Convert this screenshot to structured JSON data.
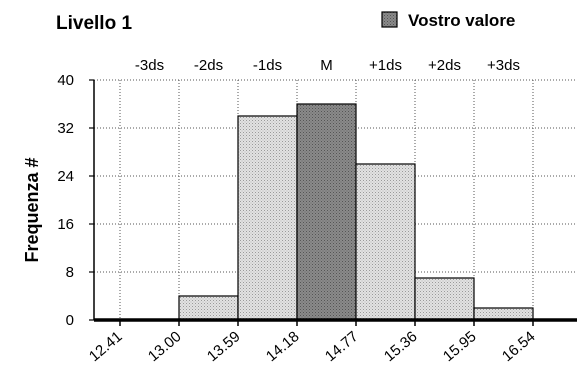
{
  "chart_data": {
    "type": "bar",
    "title": "Livello 1",
    "legend": {
      "label": "Vostro valore",
      "color": "#7a7a7a",
      "placement": "top-right"
    },
    "ylabel": "Frequenza #",
    "xlabel": "",
    "ylim": [
      0,
      40
    ],
    "yticks": [
      0,
      8,
      16,
      24,
      32,
      40
    ],
    "x_edges": [
      12.41,
      13.0,
      13.59,
      14.18,
      14.77,
      15.36,
      15.95,
      16.54
    ],
    "x_tick_labels": [
      "12.41",
      "13.00",
      "13.59",
      "14.18",
      "14.77",
      "15.36",
      "15.95",
      "16.54"
    ],
    "sd_labels": [
      "-3ds",
      "-2ds",
      "-1ds",
      "M",
      "+1ds",
      "+2ds",
      "+3ds"
    ],
    "grid": true,
    "bins": [
      {
        "from": 12.41,
        "to": 13.0,
        "value": 0,
        "highlight": false
      },
      {
        "from": 13.0,
        "to": 13.59,
        "value": 4,
        "highlight": false
      },
      {
        "from": 13.59,
        "to": 14.18,
        "value": 34,
        "highlight": false
      },
      {
        "from": 14.18,
        "to": 14.77,
        "value": 36,
        "highlight": true
      },
      {
        "from": 14.77,
        "to": 15.36,
        "value": 26,
        "highlight": false
      },
      {
        "from": 15.36,
        "to": 15.95,
        "value": 7,
        "highlight": false
      },
      {
        "from": 15.95,
        "to": 16.54,
        "value": 2,
        "highlight": false
      }
    ],
    "colors": {
      "bar": "#d4d4d4",
      "highlight": "#7a7a7a"
    }
  }
}
